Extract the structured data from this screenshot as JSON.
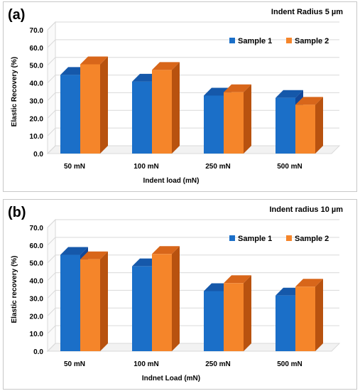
{
  "chart_data": [
    {
      "type": "bar",
      "panel_label": "(a)",
      "title": "Indent Radius 5 µm",
      "xlabel": "Indent load (mN)",
      "ylabel": "Elastic Recovery (%)",
      "ylim": [
        0,
        70
      ],
      "yticks": [
        "0.0",
        "10.0",
        "20.0",
        "30.0",
        "40.0",
        "50.0",
        "60.0",
        "70.0"
      ],
      "categories": [
        "50 mN",
        "100 mN",
        "250 mN",
        "500 mN"
      ],
      "series": [
        {
          "name": "Sample 1",
          "values": [
            44.5,
            40.7,
            32.8,
            31.5
          ]
        },
        {
          "name": "Sample 2",
          "values": [
            50.5,
            47.3,
            34.7,
            27.6
          ]
        }
      ],
      "legend_position": "top-right",
      "grid": true
    },
    {
      "type": "bar",
      "panel_label": "(b)",
      "title": "Indent radius 10 µm",
      "xlabel": "Indnet Load (mN)",
      "ylabel": "Elastic recovery (%)",
      "ylim": [
        0,
        70
      ],
      "yticks": [
        "0.0",
        "10.0",
        "20.0",
        "30.0",
        "40.0",
        "50.0",
        "60.0",
        "70.0"
      ],
      "categories": [
        "50 mN",
        "100 mN",
        "250 mN",
        "500 mN"
      ],
      "series": [
        {
          "name": "Sample 1",
          "values": [
            54.5,
            48.0,
            34.0,
            31.5
          ]
        },
        {
          "name": "Sample 2",
          "values": [
            52.0,
            55.0,
            38.5,
            36.5
          ]
        }
      ],
      "legend_position": "top-right",
      "grid": true
    }
  ],
  "colors": {
    "sample1_front": "#1b6fc8",
    "sample1_side": "#12489a",
    "sample1_top": "#1558aa",
    "sample2_front": "#f5852a",
    "sample2_side": "#b8520f",
    "sample2_top": "#d8661a",
    "grid": "#d9d9d9"
  }
}
